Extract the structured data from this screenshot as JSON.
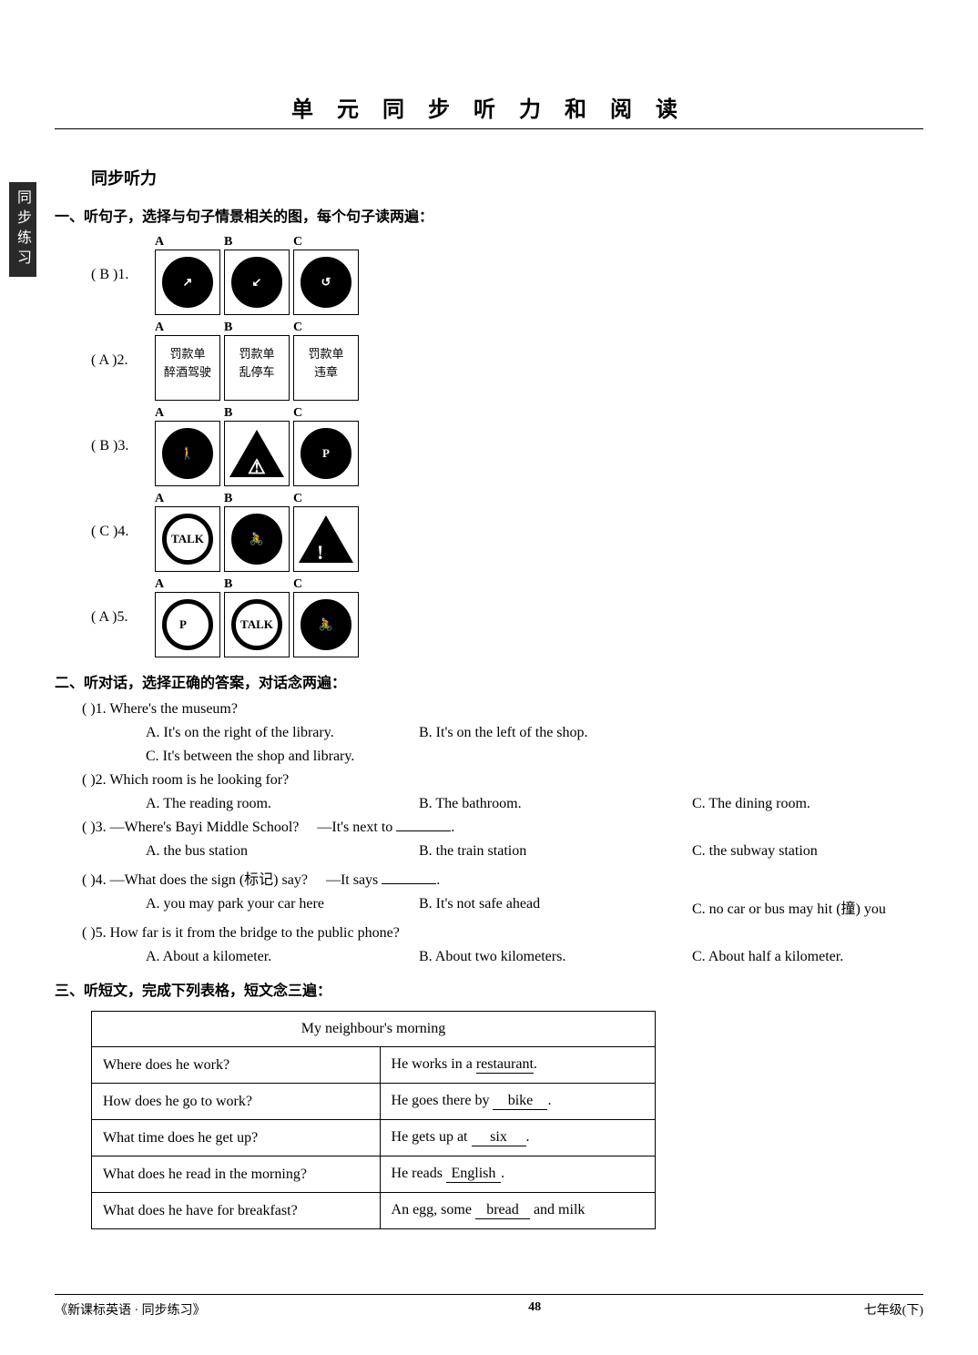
{
  "side_tab": "同步练习",
  "main_title": "单 元 同 步 听 力 和 阅 读",
  "section_label": "同步听力",
  "part1_heading": "一、听句子，选择与句子情景相关的图，每个句子读两遍：",
  "part1_rows": [
    {
      "num": "( B )1.",
      "a_label": "A",
      "b_label": "B",
      "c_label": "C",
      "a_txt": "↗",
      "b_txt": "↙",
      "c_txt": "↺"
    },
    {
      "num": "( A )2.",
      "a_label": "A",
      "b_label": "B",
      "c_label": "C",
      "a_txt": "罚款单\n醉酒驾驶",
      "b_txt": "罚款单\n乱停车",
      "c_txt": "罚款单\n违章"
    },
    {
      "num": "( B )3.",
      "a_label": "A",
      "b_label": "B",
      "c_label": "C",
      "a_txt": "🚶",
      "b_txt": "▲",
      "c_txt": "P"
    },
    {
      "num": "( C )4.",
      "a_label": "A",
      "b_label": "B",
      "c_label": "C",
      "a_txt": "TALK",
      "b_txt": "🚴",
      "c_txt": "!"
    },
    {
      "num": "( A )5.",
      "a_label": "A",
      "b_label": "B",
      "c_label": "C",
      "a_txt": "P⃠",
      "b_txt": "TALK",
      "c_txt": "🚴"
    }
  ],
  "part2_heading": "二、听对话，选择正确的答案，对话念两遍：",
  "part2_q1": {
    "num": "(    )1. Where's the museum?",
    "a": "A. It's on the right of the library.",
    "b": "B. It's on the left of the shop.",
    "c": "C. It's between the shop and library."
  },
  "part2_q2": {
    "num": "(    )2. Which room is he looking for?",
    "a": "A. The reading room.",
    "b": "B. The bathroom.",
    "c": "C. The dining room."
  },
  "part2_q3": {
    "stem_a": "(    )3. —Where's Bayi Middle School?",
    "stem_b": "—It's next to ",
    "blank": "          ",
    "tail": ".",
    "a": "A. the bus station",
    "b": "B. the train station",
    "c": "C. the subway station"
  },
  "part2_q4": {
    "stem_a": "(    )4. —What does the sign (标记) say?",
    "stem_b": "—It says ",
    "blank": "          ",
    "tail": ".",
    "a": "A. you may park your car here",
    "b": "B. It's not safe ahead",
    "c": "C. no car or bus may hit (撞) you"
  },
  "part2_q5": {
    "num": "(    )5. How far is it from the bridge to the public phone?",
    "a": "A. About a kilometer.",
    "b": "B. About two kilometers.",
    "c": "C. About half a kilometer."
  },
  "part3_heading": "三、听短文，完成下列表格，短文念三遍：",
  "table": {
    "title": "My neighbour's morning",
    "rows": [
      {
        "q": "Where does he work?",
        "a_pre": "He works  in a ",
        "ans": "restaurant",
        "a_post": "."
      },
      {
        "q": "How does he go to work?",
        "a_pre": "He goes there by ",
        "ans": "bike",
        "a_post": "."
      },
      {
        "q": "What time does he get up?",
        "a_pre": "He gets up at ",
        "ans": "six",
        "a_post": "."
      },
      {
        "q": "What does he read in the morning?",
        "a_pre": "He reads   ",
        "ans": "English",
        "a_post": "."
      },
      {
        "q": "What does he have for breakfast?",
        "a_pre": "An egg, some ",
        "ans": "bread",
        "a_post": "          and milk"
      }
    ]
  },
  "footer_left": "《新课标英语 · 同步练习》",
  "footer_center": "48",
  "footer_right": "七年级(下)"
}
